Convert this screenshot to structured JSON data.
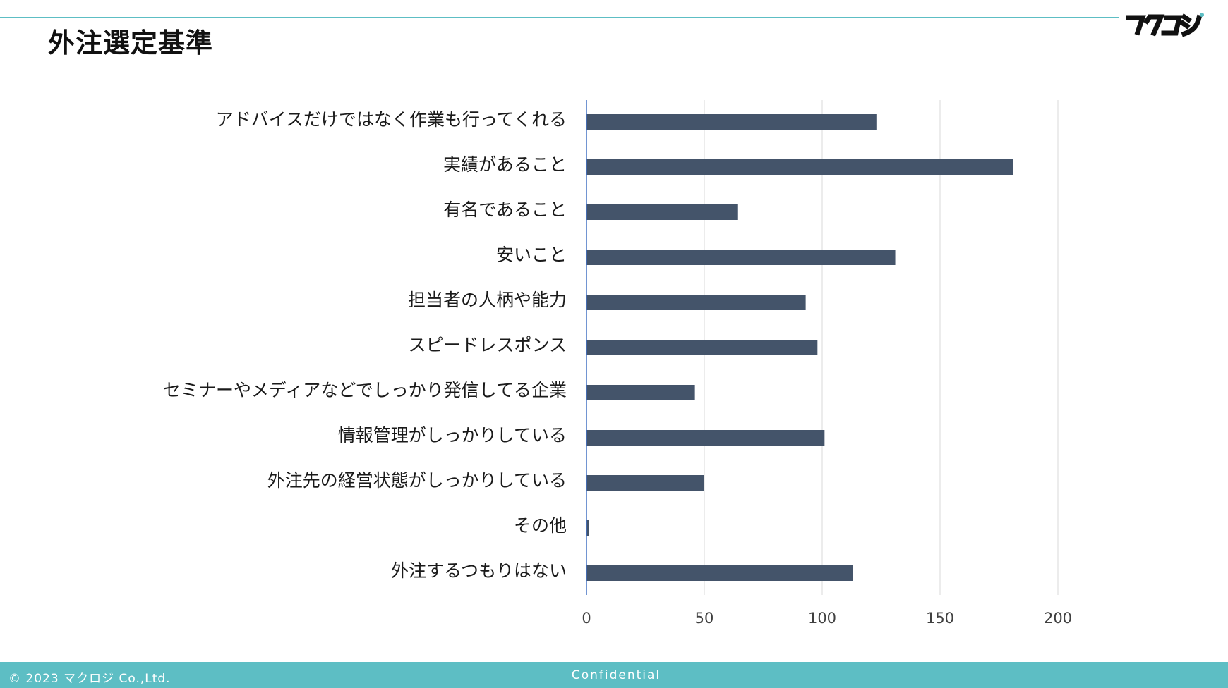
{
  "slide": {
    "title": "外注選定基準",
    "logo_text": "マクロジ",
    "footer": {
      "copyright": "© 2023 マクロジ Co.,Ltd.",
      "confidential": "Confidential"
    }
  },
  "colors": {
    "bar": "#44546a",
    "accent": "#5dbec4",
    "grid": "#d9d9d9",
    "axis": "#4472c4",
    "label_text": "#1a1a1a",
    "tick_text": "#404040"
  },
  "chart_data": {
    "type": "bar",
    "orientation": "horizontal",
    "title": "",
    "xlabel": "",
    "ylabel": "",
    "categories": [
      "アドバイスだけではなく作業も行ってくれる",
      "実績があること",
      "有名であること",
      "安いこと",
      "担当者の人柄や能力",
      "スピードレスポンス",
      "セミナーやメディアなどでしっかり発信してる企業",
      "情報管理がしっかりしている",
      "外注先の経営状態がしっかりしている",
      "その他",
      "外注するつもりはない"
    ],
    "values": [
      123,
      181,
      64,
      131,
      93,
      98,
      46,
      101,
      50,
      1,
      113
    ],
    "xlim": [
      0,
      200
    ],
    "xticks": [
      0,
      50,
      100,
      150,
      200
    ],
    "grid": true,
    "legend": "none"
  }
}
